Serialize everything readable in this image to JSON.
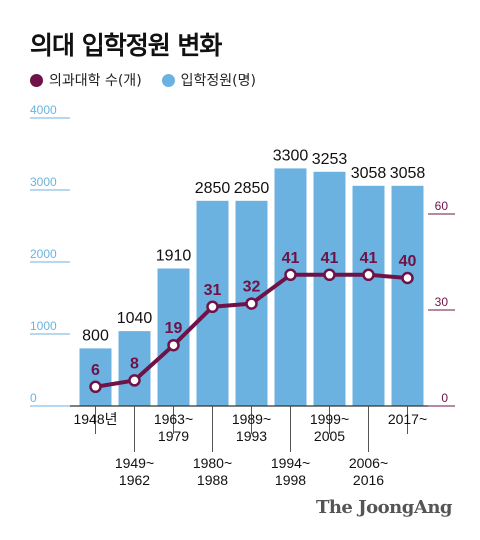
{
  "title": "의대 입학정원 변화",
  "legend": {
    "colleges_label": "의과대학 수(개)",
    "quota_label": "입학정원(명)"
  },
  "colors": {
    "bar": "#6cb2e0",
    "line": "#6e1248",
    "point_fill": "#ffffff",
    "left_axis": "#6cb2e0",
    "right_axis": "#6e1248"
  },
  "brand": "The JoongAng",
  "chart_data": {
    "type": "bar",
    "categories": [
      "1948년",
      "1949~1962",
      "1963~1979",
      "1980~1988",
      "1989~1993",
      "1994~1998",
      "1999~2005",
      "2006~2016",
      "2017~"
    ],
    "series": [
      {
        "name": "입학정원(명)",
        "type": "bar",
        "axis": "left",
        "values": [
          800,
          1040,
          1910,
          2850,
          2850,
          3300,
          3253,
          3058,
          3058
        ]
      },
      {
        "name": "의과대학 수(개)",
        "type": "line",
        "axis": "right",
        "values": [
          6,
          8,
          19,
          31,
          32,
          41,
          41,
          41,
          40
        ]
      }
    ],
    "left_axis": {
      "ticks": [
        0,
        1000,
        2000,
        3000,
        4000
      ],
      "ylim": [
        0,
        4000
      ]
    },
    "right_axis": {
      "ticks": [
        0,
        30,
        60
      ],
      "ylim": [
        0,
        90
      ]
    },
    "grid": false,
    "legend_position": "top-left"
  }
}
